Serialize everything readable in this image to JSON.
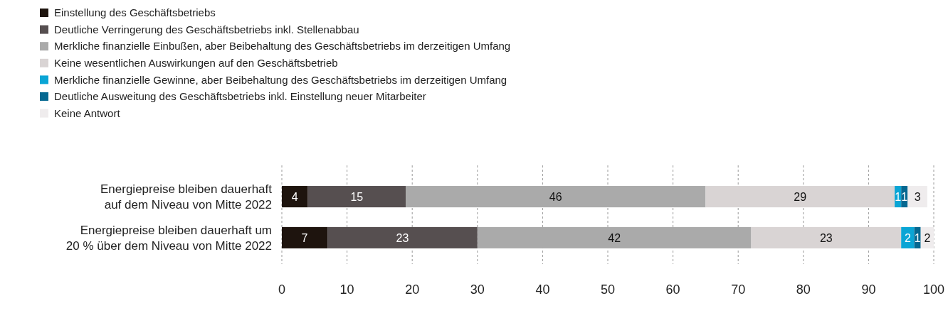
{
  "chart_data": {
    "type": "bar",
    "orientation": "horizontal",
    "stacked": true,
    "data_labels": true,
    "legend": "top left",
    "grid": "x",
    "categories": [
      "Energiepreise bleiben dauerhaft auf dem Niveau von Mitte 2022",
      "Energiepreise bleiben dauerhaft um 20 % über dem Niveau von Mitte 2022"
    ],
    "series": [
      {
        "name": "Einstellung des Geschäftsbetriebs",
        "color": "#1e140e",
        "values": [
          4,
          7
        ]
      },
      {
        "name": "Deutliche Verringerung des Geschäftsbetriebs inkl. Stellenabbau",
        "color": "#564f50",
        "values": [
          15,
          23
        ]
      },
      {
        "name": "Merkliche finanzielle Einbußen, aber Beibehaltung des Geschäftsbetriebs im derzeitigen Umfang",
        "color": "#aaaaaa",
        "values": [
          46,
          42
        ]
      },
      {
        "name": "Keine wesentlichen Auswirkungen auf den Geschäftsbetrieb",
        "color": "#d9d4d4",
        "values": [
          29,
          23
        ]
      },
      {
        "name": "Merkliche finanzielle Gewinne, aber Beibehaltung des Geschäftsbetriebs im derzeitigen Umfang",
        "color": "#0aa5d5",
        "values": [
          1,
          2
        ]
      },
      {
        "name": "Deutliche Ausweitung des Geschäftsbetriebs inkl. Einstellung neuer Mitarbeiter",
        "color": "#056891",
        "values": [
          1,
          1
        ]
      },
      {
        "name": "Keine Antwort",
        "color": "#efeced",
        "values": [
          3,
          2
        ]
      }
    ],
    "xlim": [
      0,
      100
    ],
    "xticks": [
      0,
      10,
      20,
      30,
      40,
      50,
      60,
      70,
      80,
      90,
      100
    ]
  }
}
